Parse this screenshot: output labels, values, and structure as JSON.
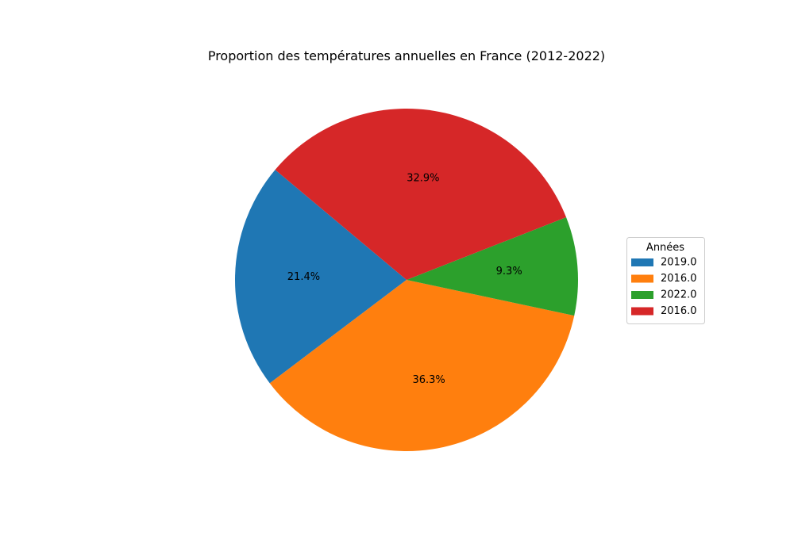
{
  "chart_data": {
    "type": "pie",
    "title": "Proportion des températures annuelles en France (2012-2022)",
    "legend_title": "Années",
    "legend_position": "right",
    "start_angle_deg": 140,
    "direction": "counterclockwise",
    "slices": [
      {
        "label": "2019.0",
        "percent": 21.4,
        "percent_label": "21.4%",
        "color": "#1f77b4"
      },
      {
        "label": "2016.0",
        "percent": 36.3,
        "percent_label": "36.3%",
        "color": "#ff7f0e"
      },
      {
        "label": "2022.0",
        "percent": 9.3,
        "percent_label": "9.3%",
        "color": "#2ca02c"
      },
      {
        "label": "2016.0",
        "percent": 32.9,
        "percent_label": "32.9%",
        "color": "#d62728"
      }
    ]
  }
}
